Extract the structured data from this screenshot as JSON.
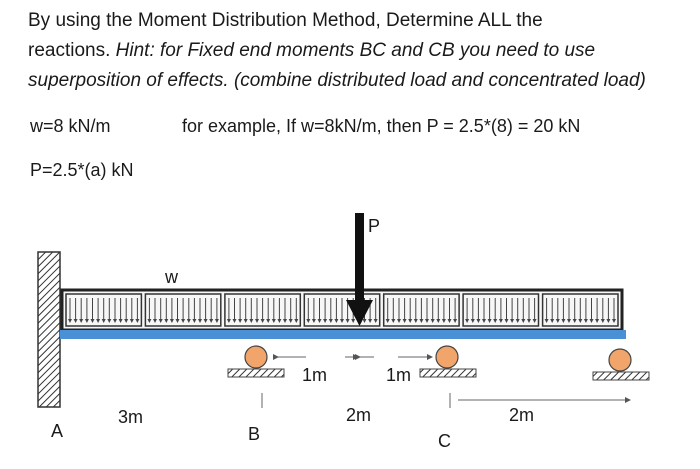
{
  "question": {
    "line1": "By using the Moment Distribution Method, Determine ALL the",
    "line2_plain": "reactions. ",
    "line2_italic": "Hint: for Fixed end moments BC and CB you need to use",
    "line3": "superposition of effects. (combine distributed load and concentrated load)"
  },
  "given": {
    "w_value": "w=8 kN/m",
    "example": "for example, If w=8kN/m, then P = 2.5*(8) = 20 kN",
    "p_value": "P=2.5*(a) kN"
  },
  "diagram": {
    "load_label_w": "w",
    "load_label_p": "P",
    "support_labels": {
      "a": "A",
      "b": "B",
      "c": "C"
    },
    "dimension_labels": {
      "ab": "3m",
      "b_to_p": "1m",
      "p_to_c": "1m",
      "bc": "2m",
      "c_to_end": "2m"
    },
    "colors": {
      "beam": "#4a90d6",
      "roller": "#f2a56b",
      "hatch": "#333333"
    }
  }
}
